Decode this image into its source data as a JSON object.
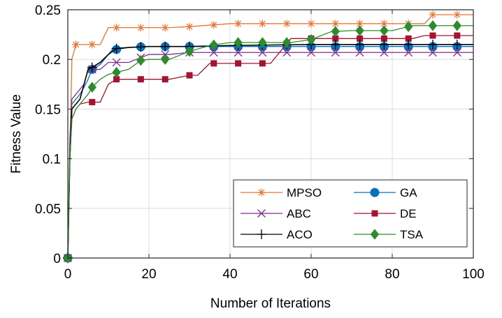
{
  "chart_data": {
    "type": "line",
    "title": "",
    "xlabel": "Number of Iterations",
    "ylabel": "Fitness Value",
    "xlim": [
      0,
      100
    ],
    "ylim": [
      0,
      0.25
    ],
    "xticks": [
      0,
      20,
      40,
      60,
      80,
      100
    ],
    "xtick_labels": [
      "0",
      "20",
      "40",
      "60",
      "80",
      "100"
    ],
    "yticks": [
      0,
      0.05,
      0.1,
      0.15,
      0.2,
      0.25
    ],
    "ytick_labels": [
      "0",
      "0.05",
      "0.1",
      "0.15",
      "0.2",
      "0.25"
    ],
    "grid": true,
    "legend_position": "bottom-right",
    "legend_columns": 2,
    "series": [
      {
        "name": "MPSO",
        "color": "#e8732e",
        "marker": "asterisk",
        "x": [
          0,
          0.5,
          1,
          2,
          3,
          5,
          8,
          10,
          12,
          20,
          25,
          30,
          40,
          50,
          60,
          70,
          80,
          85,
          88,
          90,
          95,
          100
        ],
        "y": [
          0,
          0.1,
          0.2,
          0.215,
          0.215,
          0.215,
          0.215,
          0.232,
          0.232,
          0.232,
          0.232,
          0.233,
          0.236,
          0.236,
          0.236,
          0.236,
          0.236,
          0.236,
          0.236,
          0.245,
          0.245,
          0.245
        ],
        "marker_x": [
          0,
          2,
          6,
          12,
          18,
          24,
          30,
          36,
          42,
          48,
          54,
          60,
          66,
          72,
          78,
          84,
          90,
          96
        ]
      },
      {
        "name": "GA",
        "color": "#0a72bd",
        "marker": "circle",
        "x": [
          0,
          0.5,
          1,
          2,
          3,
          4,
          5,
          6,
          8,
          10,
          11,
          12,
          15,
          20,
          50,
          60,
          100
        ],
        "y": [
          0,
          0.1,
          0.155,
          0.16,
          0.165,
          0.172,
          0.18,
          0.19,
          0.195,
          0.205,
          0.21,
          0.21,
          0.212,
          0.213,
          0.213,
          0.213,
          0.213
        ],
        "marker_x": [
          0,
          6,
          12,
          18,
          24,
          30,
          36,
          42,
          48,
          54,
          60,
          66,
          72,
          78,
          84,
          90,
          96
        ]
      },
      {
        "name": "ABC",
        "color": "#7e2f8e",
        "marker": "x",
        "x": [
          0,
          0.5,
          1,
          2,
          4,
          5,
          8,
          10,
          15,
          20,
          25,
          30,
          100
        ],
        "y": [
          0,
          0.12,
          0.16,
          0.165,
          0.175,
          0.19,
          0.19,
          0.197,
          0.197,
          0.205,
          0.205,
          0.207,
          0.207
        ],
        "marker_x": [
          0,
          6,
          12,
          18,
          24,
          30,
          36,
          42,
          48,
          54,
          60,
          66,
          72,
          78,
          84,
          90,
          96
        ]
      },
      {
        "name": "DE",
        "color": "#a2142f",
        "marker": "square",
        "x": [
          0,
          0.5,
          1,
          2,
          3,
          5,
          8,
          10,
          12,
          20,
          25,
          30,
          32,
          35,
          40,
          48,
          50,
          55,
          60,
          65,
          70,
          80,
          85,
          88,
          90,
          100
        ],
        "y": [
          0,
          0.1,
          0.14,
          0.15,
          0.155,
          0.157,
          0.157,
          0.175,
          0.18,
          0.18,
          0.18,
          0.184,
          0.184,
          0.196,
          0.196,
          0.196,
          0.196,
          0.221,
          0.221,
          0.221,
          0.221,
          0.221,
          0.221,
          0.224,
          0.224,
          0.224
        ],
        "marker_x": [
          0,
          6,
          12,
          18,
          24,
          30,
          36,
          42,
          48,
          54,
          60,
          66,
          72,
          78,
          84,
          90,
          96
        ]
      },
      {
        "name": "ACO",
        "color": "#000000",
        "marker": "plus",
        "x": [
          0,
          0.5,
          1,
          2,
          3,
          4,
          5,
          6,
          8,
          10,
          12,
          15,
          20,
          30,
          40,
          60,
          100
        ],
        "y": [
          0,
          0.1,
          0.15,
          0.155,
          0.16,
          0.175,
          0.19,
          0.192,
          0.197,
          0.205,
          0.211,
          0.212,
          0.213,
          0.213,
          0.214,
          0.215,
          0.215
        ],
        "marker_x": [
          0,
          6,
          12,
          18,
          24,
          30,
          36,
          42,
          48,
          54,
          60,
          66,
          72,
          78,
          84,
          90,
          96
        ]
      },
      {
        "name": "TSA",
        "color": "#2e8b2e",
        "marker": "diamond",
        "x": [
          0,
          0.5,
          1,
          2,
          3,
          4,
          5,
          6,
          8,
          10,
          12,
          15,
          18,
          20,
          25,
          30,
          35,
          40,
          45,
          50,
          55,
          60,
          65,
          70,
          80,
          85,
          90,
          100
        ],
        "y": [
          0,
          0.1,
          0.14,
          0.15,
          0.155,
          0.16,
          0.165,
          0.172,
          0.18,
          0.185,
          0.187,
          0.19,
          0.199,
          0.2,
          0.2,
          0.208,
          0.214,
          0.217,
          0.217,
          0.217,
          0.217,
          0.22,
          0.228,
          0.229,
          0.229,
          0.234,
          0.234,
          0.234
        ],
        "marker_x": [
          0,
          6,
          12,
          18,
          24,
          30,
          36,
          42,
          48,
          54,
          60,
          66,
          72,
          78,
          84,
          90,
          96
        ]
      }
    ]
  }
}
